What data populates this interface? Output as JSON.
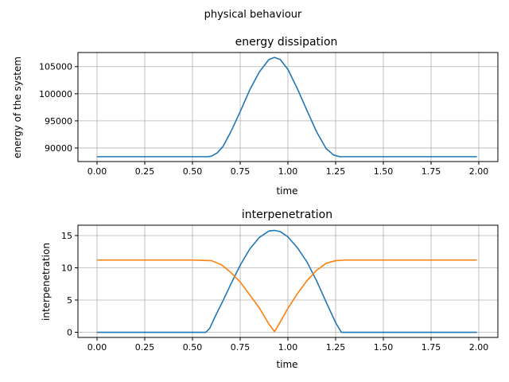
{
  "figure": {
    "suptitle": "physical behaviour"
  },
  "chart_data": [
    {
      "type": "line",
      "title": "energy dissipation",
      "xlabel": "time",
      "ylabel": "energy of the system",
      "xlim": [
        -0.1,
        2.1
      ],
      "ylim": [
        87500,
        107600
      ],
      "grid": true,
      "xticks": [
        0.0,
        0.25,
        0.5,
        0.75,
        1.0,
        1.25,
        1.5,
        1.75,
        2.0
      ],
      "xtick_labels": [
        "0.00",
        "0.25",
        "0.50",
        "0.75",
        "1.00",
        "1.25",
        "1.50",
        "1.75",
        "2.00"
      ],
      "yticks": [
        90000,
        95000,
        100000,
        105000
      ],
      "ytick_labels": [
        "90000",
        "95000",
        "100000",
        "105000"
      ],
      "series": [
        {
          "color": "#1f77b4",
          "x": [
            0.0,
            0.25,
            0.5,
            0.58,
            0.6,
            0.63,
            0.66,
            0.7,
            0.75,
            0.8,
            0.85,
            0.9,
            0.93,
            0.96,
            1.0,
            1.05,
            1.1,
            1.15,
            1.2,
            1.24,
            1.27,
            1.29,
            1.5,
            1.75,
            1.99
          ],
          "y": [
            88400,
            88400,
            88400,
            88400,
            88500,
            89100,
            90300,
            92900,
            96700,
            100700,
            104000,
            106300,
            106700,
            106300,
            104500,
            100900,
            96900,
            93000,
            89900,
            88700,
            88400,
            88400,
            88400,
            88400,
            88400
          ]
        }
      ]
    },
    {
      "type": "line",
      "title": "interpenetration",
      "xlabel": "time",
      "ylabel": "interpenetration",
      "xlim": [
        -0.1,
        2.1
      ],
      "ylim": [
        -0.8,
        16.6
      ],
      "grid": true,
      "xticks": [
        0.0,
        0.25,
        0.5,
        0.75,
        1.0,
        1.25,
        1.5,
        1.75,
        2.0
      ],
      "xtick_labels": [
        "0.00",
        "0.25",
        "0.50",
        "0.75",
        "1.00",
        "1.25",
        "1.50",
        "1.75",
        "2.00"
      ],
      "yticks": [
        0,
        5,
        10,
        15
      ],
      "ytick_labels": [
        "0",
        "5",
        "10",
        "15"
      ],
      "series": [
        {
          "color": "#1f77b4",
          "x": [
            0.0,
            0.25,
            0.5,
            0.57,
            0.59,
            0.62,
            0.66,
            0.7,
            0.75,
            0.8,
            0.85,
            0.9,
            0.93,
            0.96,
            1.0,
            1.05,
            1.1,
            1.15,
            1.2,
            1.25,
            1.28,
            1.3,
            1.5,
            1.75,
            1.99
          ],
          "y": [
            0,
            0,
            0,
            0,
            0.6,
            2.5,
            4.9,
            7.4,
            10.4,
            12.9,
            14.7,
            15.7,
            15.8,
            15.6,
            14.8,
            13.1,
            10.9,
            8.0,
            4.7,
            1.5,
            0,
            0,
            0,
            0,
            0
          ]
        },
        {
          "color": "#ff7f0e",
          "x": [
            0.0,
            0.25,
            0.5,
            0.6,
            0.65,
            0.7,
            0.75,
            0.8,
            0.85,
            0.9,
            0.93,
            0.96,
            1.0,
            1.05,
            1.1,
            1.15,
            1.2,
            1.25,
            1.3,
            1.5,
            1.75,
            1.99
          ],
          "y": [
            11.2,
            11.2,
            11.2,
            11.1,
            10.5,
            9.3,
            7.8,
            5.8,
            3.8,
            1.3,
            0.1,
            1.6,
            3.7,
            6.0,
            8.0,
            9.6,
            10.7,
            11.1,
            11.2,
            11.2,
            11.2,
            11.2
          ]
        }
      ]
    }
  ]
}
